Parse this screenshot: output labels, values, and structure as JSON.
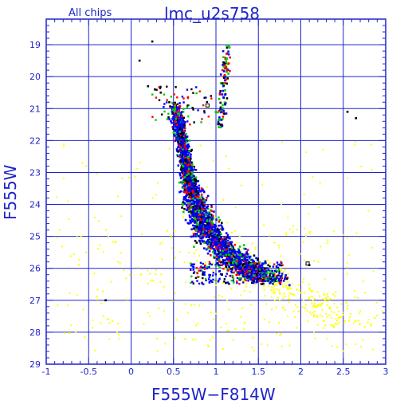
{
  "chart_data": {
    "type": "scatter",
    "title": "lmc_u2s758",
    "subtitle": "All chips",
    "xlabel": "F555W−F814W",
    "ylabel": "F555W",
    "xlim": [
      -1,
      3
    ],
    "ylim": [
      29,
      18.2
    ],
    "y_inverted": true,
    "grid": true,
    "x_ticks": [
      "-1",
      "-0.5",
      "0",
      "0.5",
      "1",
      "1.5",
      "2",
      "2.5",
      "3"
    ],
    "y_ticks": [
      "19",
      "20",
      "21",
      "22",
      "23",
      "24",
      "25",
      "26",
      "27",
      "28",
      "29"
    ],
    "colors": {
      "axis": "#1f24c8",
      "grid": "#1f24c8",
      "text": "#1f24c8",
      "points": [
        "#0000ff",
        "#ff0000",
        "#00cc00",
        "#000000",
        "#ffff00"
      ]
    },
    "series": [
      {
        "color": "#ffff00",
        "description_points": "field scatter",
        "sample": [
          [
            0.2,
            22.9
          ],
          [
            -0.8,
            25.0
          ],
          [
            0.6,
            26.4
          ],
          [
            1.6,
            26.8
          ],
          [
            2.1,
            27.3
          ],
          [
            2.6,
            27.5
          ],
          [
            2.8,
            28.1
          ],
          [
            1.9,
            25.2
          ],
          [
            0.0,
            25.7
          ],
          [
            -0.3,
            24.3
          ],
          [
            2.4,
            23.6
          ],
          [
            1.2,
            27.0
          ]
        ]
      },
      {
        "color": "#0000ff",
        "sample": [
          [
            0.5,
            21.2
          ],
          [
            0.55,
            22.0
          ],
          [
            0.7,
            23.0
          ],
          [
            0.8,
            24.0
          ],
          [
            0.9,
            24.8
          ],
          [
            1.1,
            25.4
          ],
          [
            1.3,
            25.9
          ],
          [
            1.5,
            26.2
          ],
          [
            1.7,
            26.4
          ]
        ]
      },
      {
        "color": "#ff0000",
        "sample": [
          [
            0.6,
            21.0
          ],
          [
            0.6,
            22.5
          ],
          [
            0.85,
            24.3
          ],
          [
            1.2,
            25.7
          ],
          [
            1.15,
            19.5
          ],
          [
            1.05,
            20.5
          ]
        ]
      },
      {
        "color": "#00cc00",
        "sample": [
          [
            0.65,
            22.1
          ],
          [
            0.9,
            24.6
          ],
          [
            1.4,
            26.0
          ],
          [
            1.2,
            19.8
          ]
        ]
      },
      {
        "color": "#000000",
        "sample": [
          [
            0.1,
            19.6
          ],
          [
            0.2,
            20.2
          ],
          [
            0.45,
            20.7
          ],
          [
            1.45,
            25.6
          ],
          [
            2.1,
            25.8
          ],
          [
            2.55,
            21.1
          ],
          [
            0.25,
            18.9
          ]
        ]
      }
    ]
  }
}
